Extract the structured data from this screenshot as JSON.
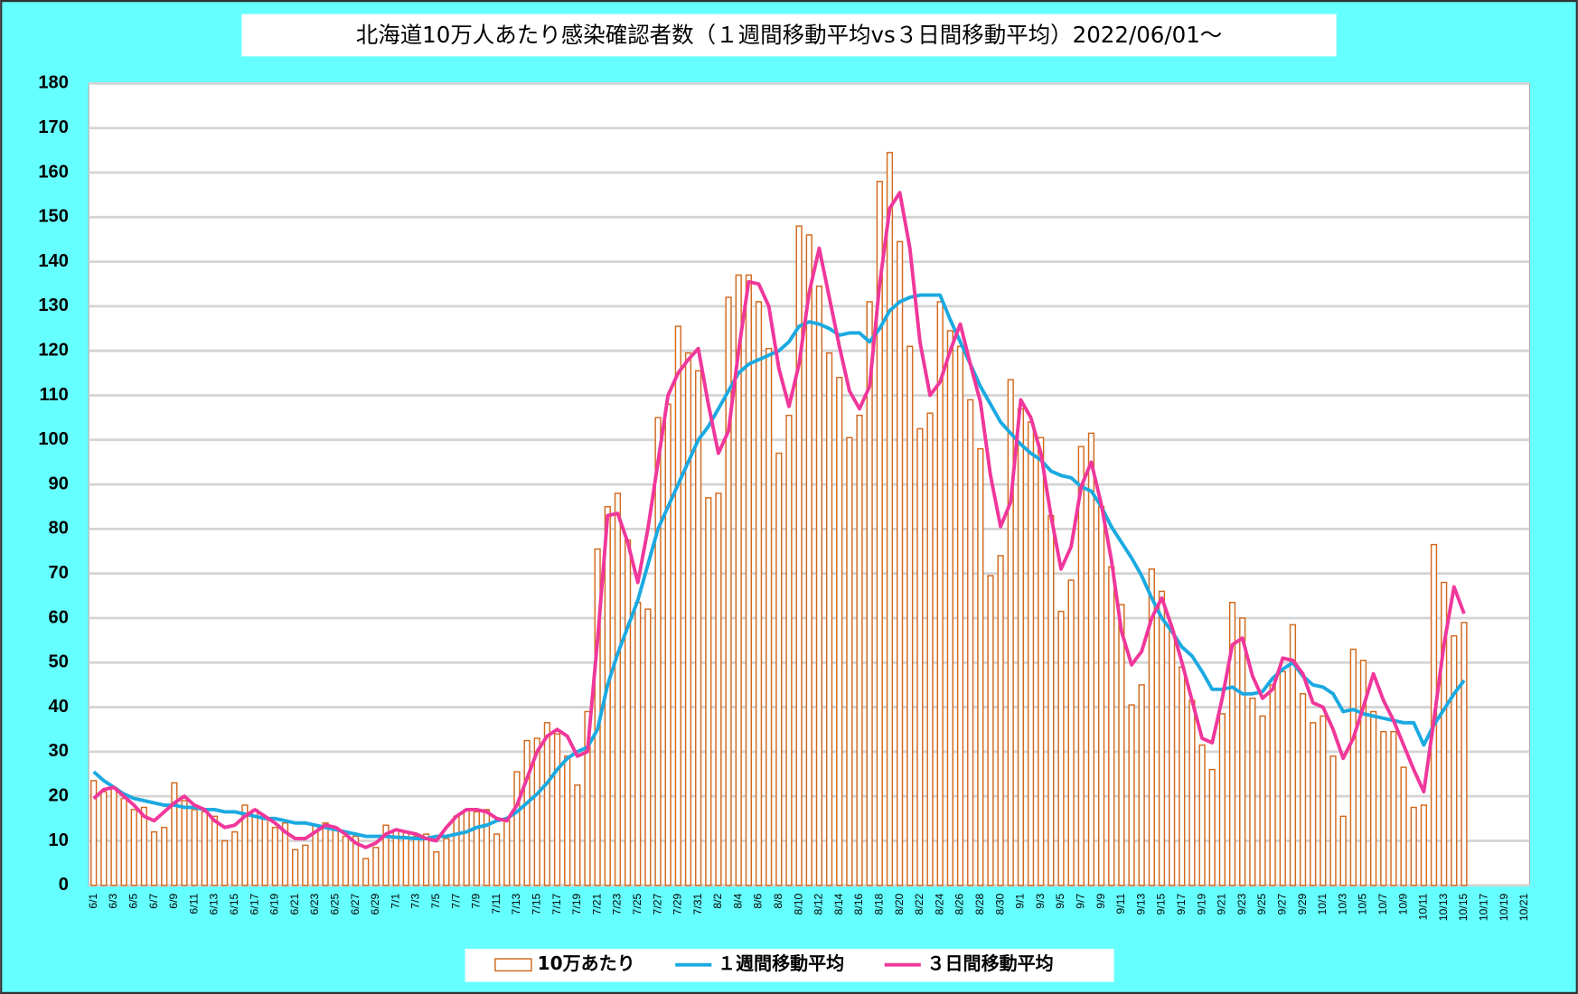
{
  "chart_data": {
    "type": "bar",
    "title": "北海道10万人あたり感染確認者数（１週間移動平均vs３日間移動平均）2022/06/01～",
    "categories": [
      "6/1",
      null,
      "6/3",
      null,
      "6/5",
      null,
      "6/7",
      null,
      "6/9",
      null,
      "6/11",
      null,
      "6/13",
      null,
      "6/15",
      null,
      "6/17",
      null,
      "6/19",
      null,
      "6/21",
      null,
      "6/23",
      null,
      "6/25",
      null,
      "6/27",
      null,
      "6/29",
      null,
      "7/1",
      null,
      "7/3",
      null,
      "7/5",
      null,
      "7/7",
      null,
      "7/9",
      null,
      "7/11",
      null,
      "7/13",
      null,
      "7/15",
      null,
      "7/17",
      null,
      "7/19",
      null,
      "7/21",
      null,
      "7/23",
      null,
      "7/25",
      null,
      "7/27",
      null,
      "7/29",
      null,
      "7/31",
      null,
      "8/2",
      null,
      "8/4",
      null,
      "8/6",
      null,
      "8/8",
      null,
      "8/10",
      null,
      "8/12",
      null,
      "8/14",
      null,
      "8/16",
      null,
      "8/18",
      null,
      "8/20",
      null,
      "8/22",
      null,
      "8/24",
      null,
      "8/26",
      null,
      "8/28",
      null,
      "8/30",
      null,
      "9/1",
      null,
      "9/3",
      null,
      "9/5",
      null,
      "9/7",
      null,
      "9/9",
      null,
      "9/11",
      null,
      "9/13",
      null,
      "9/15",
      null,
      "9/17",
      null,
      "9/19",
      null,
      "9/21",
      null,
      "9/23",
      null,
      "9/25",
      null,
      "9/27",
      null,
      "9/29",
      null,
      "10/1",
      null,
      "10/3",
      null,
      "10/5",
      null,
      "10/7",
      null,
      "10/9",
      null,
      "10/11",
      null,
      "10/13",
      null,
      "10/15",
      null,
      "10/17",
      null,
      "10/19",
      null,
      "10/21"
    ],
    "series": [
      {
        "name": "10万あたり",
        "type": "bar",
        "color": "#d2691e",
        "values": [
          23.5,
          21,
          22,
          19.5,
          17,
          17.5,
          12,
          13,
          23,
          19,
          17,
          16.5,
          15.5,
          10,
          12,
          18,
          17,
          15,
          13,
          14,
          8,
          9,
          13.5,
          14,
          13,
          11,
          11,
          6,
          8.5,
          13.5,
          12.5,
          12,
          11,
          11.5,
          7.5,
          10.5,
          15.5,
          17,
          16.5,
          17,
          11.5,
          15,
          25.5,
          32.5,
          33,
          36.5,
          34,
          29,
          22.5,
          39,
          75.5,
          85,
          88,
          77.5,
          63.5,
          62,
          105,
          108,
          125.5,
          119.5,
          115.5,
          87,
          88,
          132,
          137,
          137,
          131,
          120.5,
          97,
          105.5,
          148,
          146,
          134.5,
          119.5,
          114,
          100.5,
          105.5,
          131,
          158,
          164.5,
          144.5,
          121,
          102.5,
          106,
          131,
          124.5,
          121,
          109,
          98,
          69.5,
          74,
          113.5,
          107,
          104,
          100.5,
          83,
          61.5,
          68.5,
          98.5,
          101.5,
          85,
          71.5,
          63,
          40.5,
          45,
          71,
          66,
          57,
          49,
          41.5,
          31.5,
          26,
          38.5,
          63.5,
          60,
          42,
          38,
          45,
          48,
          58.5,
          43,
          36.5,
          38,
          29,
          15.5,
          53,
          50.5,
          39,
          34.5,
          34.5,
          26.5,
          17.5,
          18,
          76.5,
          68,
          56,
          59,
          null,
          null,
          null,
          null,
          null,
          null
        ]
      },
      {
        "name": "１週間移動平均",
        "type": "line",
        "color": "#1ba9e1",
        "values": [
          25.5,
          23.5,
          22,
          20.5,
          19.5,
          19,
          18.5,
          18,
          18,
          17.5,
          17.5,
          17,
          17,
          16.5,
          16.5,
          16,
          15.5,
          15,
          15,
          14.5,
          14,
          14,
          13.5,
          13,
          12.5,
          12,
          11.5,
          11,
          11,
          11,
          10.8,
          10.7,
          10.5,
          10.5,
          11,
          11,
          11.5,
          12,
          13,
          13.5,
          14.5,
          15,
          16.5,
          18.5,
          20.5,
          23,
          26,
          28.5,
          30,
          31,
          35,
          45,
          52,
          58,
          64,
          72,
          80,
          85,
          90,
          95,
          100,
          103,
          107,
          111,
          115,
          117,
          118,
          119,
          120,
          122,
          125.5,
          126.5,
          126,
          125,
          123.5,
          124,
          124,
          122,
          125,
          129,
          131,
          132,
          132.5,
          132.5,
          132.5,
          127,
          122,
          117,
          112,
          108,
          104,
          101.5,
          99,
          97,
          95.5,
          93,
          92,
          91.5,
          89.5,
          88.5,
          85,
          80.5,
          77,
          73.5,
          69.5,
          64.5,
          60,
          57,
          53.5,
          51.5,
          48,
          44,
          44,
          44.5,
          43,
          43,
          43.5,
          46.5,
          48.5,
          50,
          47,
          45,
          44.5,
          43,
          39,
          39.5,
          38.5,
          38,
          37.5,
          37,
          36.5,
          36.5,
          31.5,
          36,
          39.5,
          43,
          46,
          null,
          null,
          null,
          null,
          null,
          null
        ]
      },
      {
        "name": "３日間移動平均",
        "type": "line",
        "color": "#f0379b",
        "values": [
          19.5,
          21.5,
          22,
          20,
          18,
          15.5,
          14.5,
          16.5,
          18.5,
          20,
          18,
          17,
          14.5,
          13,
          13.5,
          15.5,
          17,
          15.5,
          14,
          12,
          10.5,
          10.5,
          12,
          13.5,
          13,
          11.5,
          9.5,
          8.5,
          9.5,
          11.5,
          12.5,
          12,
          11.5,
          10.5,
          10,
          13,
          15.5,
          17,
          17,
          16.5,
          15,
          14.5,
          18,
          24,
          30,
          33.5,
          35,
          33.5,
          29,
          30,
          55,
          83,
          83.5,
          77,
          68,
          80,
          95,
          110,
          115,
          118,
          120.5,
          108,
          97,
          102,
          120,
          135.5,
          135,
          130,
          116,
          107.5,
          117,
          133,
          143,
          132,
          121,
          111,
          107,
          112,
          135,
          152,
          155.5,
          143,
          122,
          110,
          113,
          120,
          126,
          117,
          108.5,
          92,
          80.5,
          86,
          109,
          105,
          97,
          83,
          71,
          76,
          89.5,
          95,
          85.5,
          73,
          57,
          49.5,
          52.5,
          60,
          64.5,
          58,
          50,
          41.5,
          33,
          32,
          42,
          54,
          55.5,
          47,
          42,
          44,
          51,
          50.5,
          47.5,
          41,
          40,
          35,
          28.5,
          33,
          40,
          47.5,
          41.5,
          37,
          31.5,
          26,
          21,
          37,
          54,
          67,
          61,
          null,
          null,
          null,
          null,
          null,
          null
        ]
      }
    ],
    "ylim": [
      0,
      180
    ],
    "yticks": [
      0,
      10,
      20,
      30,
      40,
      50,
      60,
      70,
      80,
      90,
      100,
      110,
      120,
      130,
      140,
      150,
      160,
      170,
      180
    ],
    "grid": true
  }
}
